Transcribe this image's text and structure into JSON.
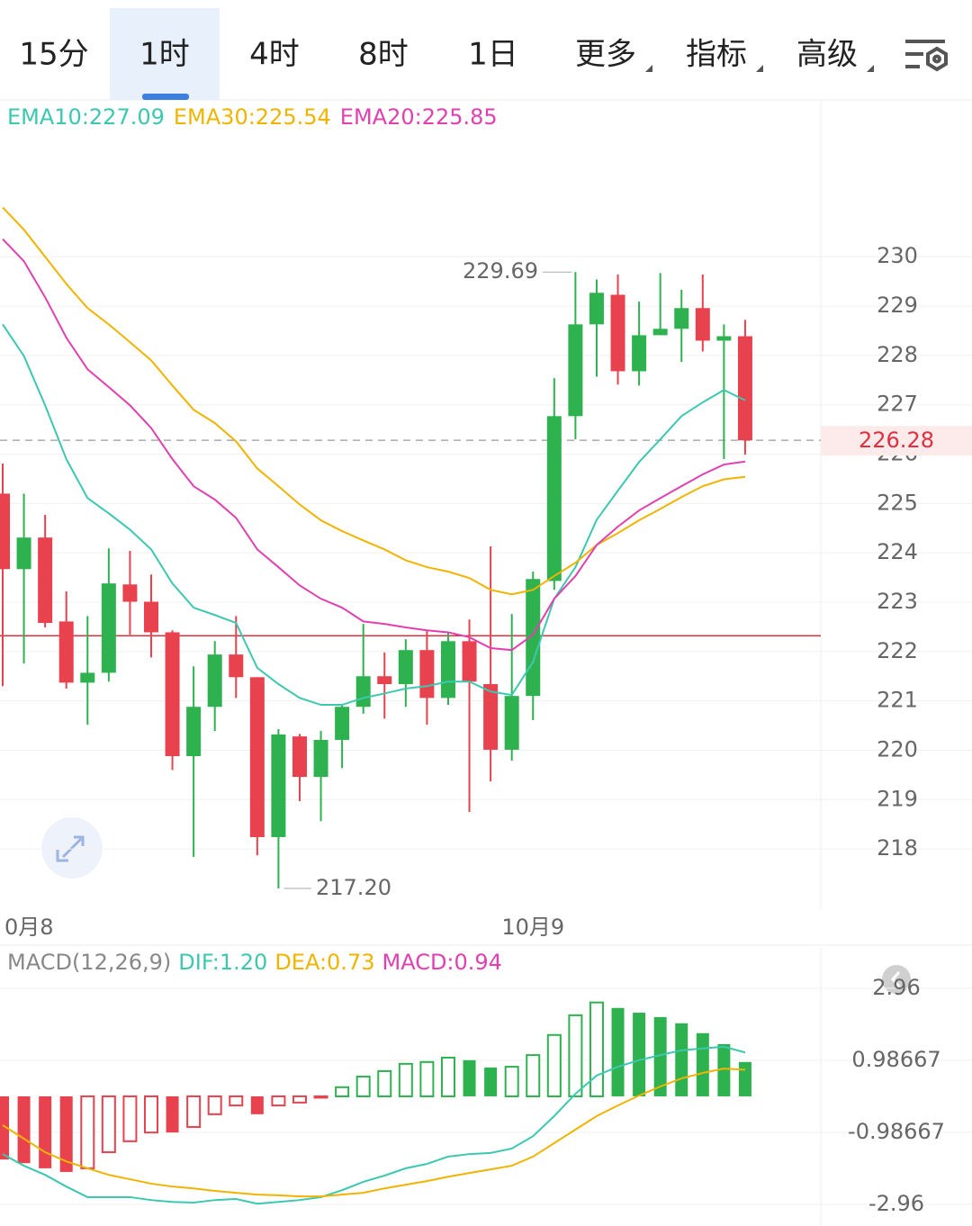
{
  "tabs": {
    "items": [
      "15分",
      "1时",
      "4时",
      "8时",
      "1日",
      "更多",
      "指标",
      "高级"
    ],
    "active": 1
  },
  "chart_data": [
    {
      "type": "candlestick",
      "legend": [
        "EMA10:227.09",
        "EMA30:225.54",
        "EMA20:225.85"
      ],
      "up_color": "#2eb24f",
      "down_color": "#e8424f",
      "open": [
        225.2,
        223.67,
        224.31,
        222.61,
        221.37,
        221.57,
        223.36,
        223.01,
        222.39,
        219.88,
        220.88,
        221.94,
        221.48,
        218.24,
        220.28,
        219.46,
        220.21,
        220.88,
        221.5,
        221.34,
        222.03,
        221.06,
        222.21,
        221.34,
        220.01,
        221.1,
        223.43,
        226.77,
        228.63,
        229.23,
        227.68,
        228.41,
        228.54,
        228.96,
        228.3,
        228.39
      ],
      "high": [
        225.81,
        225.2,
        224.77,
        223.22,
        222.72,
        224.09,
        224.04,
        223.56,
        222.43,
        221.7,
        222.21,
        222.72,
        221.48,
        220.43,
        220.33,
        220.39,
        220.94,
        222.56,
        221.98,
        222.25,
        222.43,
        222.38,
        222.65,
        224.13,
        222.76,
        223.62,
        227.54,
        229.69,
        229.54,
        229.64,
        229.09,
        229.67,
        229.33,
        229.64,
        228.63,
        228.72
      ],
      "low": [
        221.3,
        221.76,
        222.49,
        221.25,
        220.52,
        221.39,
        222.34,
        221.88,
        219.6,
        217.84,
        220.39,
        221.06,
        217.87,
        217.2,
        218.97,
        218.56,
        219.64,
        220.74,
        220.64,
        220.88,
        220.52,
        220.92,
        218.75,
        219.37,
        219.79,
        220.61,
        223.25,
        226.3,
        227.57,
        227.41,
        227.39,
        228.41,
        227.87,
        228.08,
        225.9,
        225.99
      ],
      "close": [
        223.67,
        224.31,
        222.58,
        221.37,
        221.57,
        223.38,
        223.01,
        222.39,
        219.88,
        220.88,
        221.94,
        221.48,
        218.24,
        220.32,
        219.46,
        220.21,
        220.88,
        221.5,
        221.34,
        222.03,
        221.06,
        222.21,
        221.39,
        220.01,
        221.1,
        223.47,
        226.77,
        228.63,
        229.27,
        227.68,
        228.41,
        228.54,
        228.96,
        228.3,
        228.39,
        226.28
      ],
      "series": [
        {
          "name": "EMA10",
          "color": "#3cc8b0",
          "values": [
            228.63,
            227.99,
            226.99,
            225.9,
            225.11,
            224.8,
            224.47,
            224.07,
            223.38,
            222.89,
            222.74,
            222.58,
            221.67,
            221.34,
            221.06,
            220.92,
            220.92,
            221.06,
            221.15,
            221.25,
            221.3,
            221.39,
            221.39,
            221.19,
            221.12,
            221.79,
            223.07,
            223.71,
            224.67,
            225.26,
            225.84,
            226.3,
            226.77,
            227.05,
            227.3,
            227.09
          ]
        },
        {
          "name": "EMA30",
          "color": "#f0b400",
          "values": [
            231.0,
            230.55,
            230.0,
            229.45,
            228.96,
            228.63,
            228.27,
            227.9,
            227.39,
            226.9,
            226.63,
            226.26,
            225.71,
            225.35,
            224.98,
            224.66,
            224.44,
            224.25,
            224.07,
            223.85,
            223.71,
            223.62,
            223.49,
            223.25,
            223.16,
            223.25,
            223.53,
            223.8,
            224.16,
            224.4,
            224.66,
            224.89,
            225.13,
            225.35,
            225.49,
            225.54
          ]
        },
        {
          "name": "EMA20",
          "color": "#e040b0",
          "values": [
            230.36,
            229.91,
            229.18,
            228.36,
            227.72,
            227.36,
            226.99,
            226.53,
            225.9,
            225.35,
            225.08,
            224.71,
            224.07,
            223.71,
            223.34,
            223.07,
            222.89,
            222.61,
            222.56,
            222.49,
            222.43,
            222.39,
            222.29,
            222.07,
            222.03,
            222.34,
            223.07,
            223.53,
            224.16,
            224.53,
            224.86,
            225.11,
            225.35,
            225.59,
            225.79,
            225.85
          ]
        }
      ],
      "ylim": [
        216.78,
        233.16
      ],
      "yticks": [
        218,
        219,
        220,
        221,
        222,
        223,
        224,
        225,
        226,
        227,
        228,
        229,
        230
      ],
      "grid": true,
      "reference_line": 222.32,
      "annotations": [
        {
          "value": 229.69,
          "label": "229.69"
        },
        {
          "value": 217.2,
          "label": "217.20"
        }
      ],
      "x_labels": [
        "0月8",
        "10月9"
      ]
    },
    {
      "type": "macd",
      "legend": [
        "MACD(12,26,9)",
        "DIF:1.20",
        "DEA:0.73",
        "MACD:0.94"
      ],
      "legend_colors": [
        "#888888",
        "#3cc8b0",
        "#f0b400",
        "#e040b0"
      ],
      "values": [
        -1.73,
        -1.83,
        -1.97,
        -2.07,
        -1.97,
        -1.53,
        -1.23,
        -0.99,
        -0.99,
        -0.84,
        -0.49,
        -0.25,
        -0.49,
        -0.25,
        -0.17,
        -0.02,
        0.25,
        0.54,
        0.69,
        0.89,
        0.94,
        1.06,
        0.99,
        0.79,
        0.81,
        1.13,
        1.68,
        2.22,
        2.57,
        2.42,
        2.29,
        2.17,
        2.0,
        1.73,
        1.43,
        0.94
      ],
      "series": [
        {
          "name": "DIF",
          "color": "#3cc8b0",
          "values": [
            -1.58,
            -1.9,
            -2.15,
            -2.47,
            -2.76,
            -2.76,
            -2.76,
            -2.84,
            -2.89,
            -2.91,
            -2.84,
            -2.81,
            -2.94,
            -2.89,
            -2.84,
            -2.76,
            -2.57,
            -2.34,
            -2.17,
            -1.97,
            -1.85,
            -1.65,
            -1.58,
            -1.55,
            -1.43,
            -1.09,
            -0.54,
            0.07,
            0.57,
            0.81,
            0.99,
            1.13,
            1.26,
            1.31,
            1.36,
            1.2
          ]
        },
        {
          "name": "DEA",
          "color": "#f0b400",
          "values": [
            -0.79,
            -1.16,
            -1.53,
            -1.78,
            -1.97,
            -2.15,
            -2.27,
            -2.39,
            -2.47,
            -2.52,
            -2.59,
            -2.64,
            -2.69,
            -2.71,
            -2.74,
            -2.74,
            -2.69,
            -2.64,
            -2.52,
            -2.42,
            -2.32,
            -2.2,
            -2.1,
            -2.0,
            -1.9,
            -1.65,
            -1.28,
            -0.91,
            -0.54,
            -0.25,
            0.02,
            0.27,
            0.49,
            0.64,
            0.76,
            0.73
          ]
        }
      ],
      "ylim": [
        -3.55,
        3.4
      ],
      "yticks": [
        2.96,
        0.98667,
        -0.98667,
        -2.96
      ],
      "grid": true
    }
  ]
}
